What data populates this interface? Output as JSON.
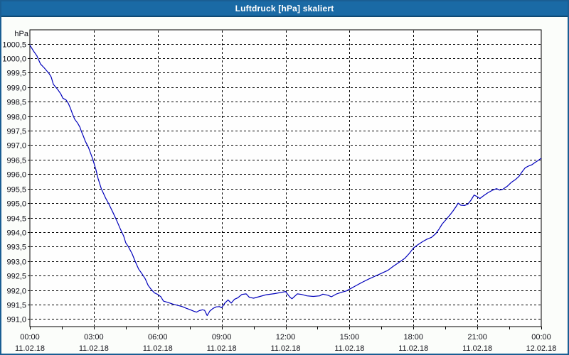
{
  "header": {
    "title": "Luftdruck [hPa] skaliert"
  },
  "colors": {
    "titlebar_bg": "#1a6aa5",
    "titlebar_border": "#0f4a74",
    "window_border": "#1a5e93",
    "chart_bg": "#fbfdfa",
    "plot_bg": "#fefefe",
    "grid_color": "#000000",
    "axis_color": "#000000",
    "label_color": "#101018",
    "line_color": "#0000bb"
  },
  "chart_data": {
    "type": "line",
    "title": "Luftdruck [hPa] skaliert",
    "unit_label": "hPa",
    "legend": "none",
    "grid": "dashed",
    "x_axis": {
      "start_hour": 0,
      "end_hour": 24,
      "major_tick_hours": 3,
      "minor_tick_hours": 1.5,
      "tick_labels": [
        {
          "time": "00:00",
          "date": "11.02.18"
        },
        {
          "time": "03:00",
          "date": "11.02.18"
        },
        {
          "time": "06:00",
          "date": "11.02.18"
        },
        {
          "time": "09:00",
          "date": "11.02.18"
        },
        {
          "time": "12:00",
          "date": "11.02.18"
        },
        {
          "time": "15:00",
          "date": "11.02.18"
        },
        {
          "time": "18:00",
          "date": "11.02.18"
        },
        {
          "time": "21:00",
          "date": "11.02.18"
        },
        {
          "time": "00:00",
          "date": "12.02.18"
        }
      ]
    },
    "y_axis": {
      "unit": "hPa",
      "label_max": 1000.5,
      "label_min": 991.0,
      "label_step": 0.5,
      "top_value": 1000.98,
      "bottom_value": 990.74,
      "tick_labels": [
        "1000,5",
        "1000,0",
        "999,5",
        "999,0",
        "998,5",
        "998,0",
        "997,5",
        "997,0",
        "996,5",
        "996,0",
        "995,5",
        "995,0",
        "994,5",
        "994,0",
        "993,5",
        "993,0",
        "992,5",
        "992,0",
        "991,5",
        "991,0"
      ]
    },
    "series": [
      {
        "name": "Luftdruck",
        "color": "#0000bb",
        "points": [
          [
            0.0,
            1000.45
          ],
          [
            0.17,
            1000.25
          ],
          [
            0.33,
            1000.08
          ],
          [
            0.5,
            999.8
          ],
          [
            0.67,
            999.67
          ],
          [
            0.9,
            999.47
          ],
          [
            1.0,
            999.35
          ],
          [
            1.1,
            999.1
          ],
          [
            1.3,
            998.93
          ],
          [
            1.45,
            998.77
          ],
          [
            1.55,
            998.62
          ],
          [
            1.7,
            998.56
          ],
          [
            1.8,
            998.45
          ],
          [
            1.9,
            998.28
          ],
          [
            2.0,
            998.08
          ],
          [
            2.1,
            997.9
          ],
          [
            2.25,
            997.75
          ],
          [
            2.35,
            997.62
          ],
          [
            2.42,
            997.47
          ],
          [
            2.5,
            997.33
          ],
          [
            2.6,
            997.14
          ],
          [
            2.75,
            996.92
          ],
          [
            2.85,
            996.72
          ],
          [
            2.95,
            996.52
          ],
          [
            3.1,
            996.15
          ],
          [
            3.2,
            995.85
          ],
          [
            3.35,
            995.5
          ],
          [
            3.55,
            995.18
          ],
          [
            3.7,
            994.98
          ],
          [
            3.9,
            994.68
          ],
          [
            4.1,
            994.36
          ],
          [
            4.25,
            994.1
          ],
          [
            4.4,
            993.87
          ],
          [
            4.5,
            993.63
          ],
          [
            4.62,
            993.5
          ],
          [
            4.8,
            993.25
          ],
          [
            4.95,
            992.98
          ],
          [
            5.1,
            992.73
          ],
          [
            5.3,
            992.52
          ],
          [
            5.42,
            992.38
          ],
          [
            5.55,
            992.16
          ],
          [
            5.72,
            992.0
          ],
          [
            5.85,
            991.9
          ],
          [
            6.0,
            991.85
          ],
          [
            6.15,
            991.77
          ],
          [
            6.27,
            991.62
          ],
          [
            6.45,
            991.58
          ],
          [
            6.7,
            991.52
          ],
          [
            6.85,
            991.49
          ],
          [
            7.0,
            991.46
          ],
          [
            7.15,
            991.43
          ],
          [
            7.35,
            991.37
          ],
          [
            7.5,
            991.33
          ],
          [
            7.7,
            991.27
          ],
          [
            7.82,
            991.24
          ],
          [
            7.95,
            991.29
          ],
          [
            8.1,
            991.32
          ],
          [
            8.2,
            991.3
          ],
          [
            8.32,
            991.12
          ],
          [
            8.45,
            991.28
          ],
          [
            8.6,
            991.37
          ],
          [
            8.75,
            991.42
          ],
          [
            8.9,
            991.43
          ],
          [
            9.0,
            991.39
          ],
          [
            9.15,
            991.55
          ],
          [
            9.3,
            991.66
          ],
          [
            9.45,
            991.55
          ],
          [
            9.6,
            991.68
          ],
          [
            9.75,
            991.73
          ],
          [
            9.95,
            991.85
          ],
          [
            10.15,
            991.87
          ],
          [
            10.3,
            991.75
          ],
          [
            10.5,
            991.72
          ],
          [
            10.8,
            991.78
          ],
          [
            11.1,
            991.84
          ],
          [
            11.5,
            991.88
          ],
          [
            11.8,
            991.92
          ],
          [
            12.0,
            991.95
          ],
          [
            12.2,
            991.76
          ],
          [
            12.3,
            991.7
          ],
          [
            12.55,
            991.87
          ],
          [
            12.75,
            991.85
          ],
          [
            13.0,
            991.8
          ],
          [
            13.3,
            991.78
          ],
          [
            13.6,
            991.8
          ],
          [
            13.75,
            991.86
          ],
          [
            14.0,
            991.82
          ],
          [
            14.15,
            991.77
          ],
          [
            14.4,
            991.87
          ],
          [
            14.65,
            991.93
          ],
          [
            14.85,
            991.97
          ],
          [
            15.0,
            992.03
          ],
          [
            15.3,
            992.15
          ],
          [
            15.6,
            992.27
          ],
          [
            15.9,
            992.38
          ],
          [
            16.2,
            992.48
          ],
          [
            16.5,
            992.58
          ],
          [
            16.8,
            992.68
          ],
          [
            17.05,
            992.82
          ],
          [
            17.35,
            992.97
          ],
          [
            17.6,
            993.1
          ],
          [
            17.8,
            993.26
          ],
          [
            18.0,
            993.45
          ],
          [
            18.2,
            993.56
          ],
          [
            18.45,
            993.68
          ],
          [
            18.65,
            993.76
          ],
          [
            18.85,
            993.82
          ],
          [
            19.05,
            993.95
          ],
          [
            19.2,
            994.1
          ],
          [
            19.35,
            994.28
          ],
          [
            19.55,
            994.45
          ],
          [
            19.7,
            994.58
          ],
          [
            19.85,
            994.72
          ],
          [
            20.0,
            994.88
          ],
          [
            20.1,
            995.0
          ],
          [
            20.22,
            994.93
          ],
          [
            20.4,
            994.92
          ],
          [
            20.55,
            994.96
          ],
          [
            20.7,
            995.1
          ],
          [
            20.85,
            995.28
          ],
          [
            21.0,
            995.22
          ],
          [
            21.12,
            995.16
          ],
          [
            21.3,
            995.26
          ],
          [
            21.5,
            995.36
          ],
          [
            21.7,
            995.44
          ],
          [
            21.9,
            995.5
          ],
          [
            22.05,
            995.45
          ],
          [
            22.2,
            995.48
          ],
          [
            22.4,
            995.58
          ],
          [
            22.6,
            995.72
          ],
          [
            22.8,
            995.82
          ],
          [
            22.95,
            995.92
          ],
          [
            23.1,
            996.08
          ],
          [
            23.25,
            996.22
          ],
          [
            23.4,
            996.28
          ],
          [
            23.55,
            996.32
          ],
          [
            23.7,
            996.4
          ],
          [
            23.85,
            996.47
          ],
          [
            24.0,
            996.55
          ]
        ]
      }
    ]
  }
}
